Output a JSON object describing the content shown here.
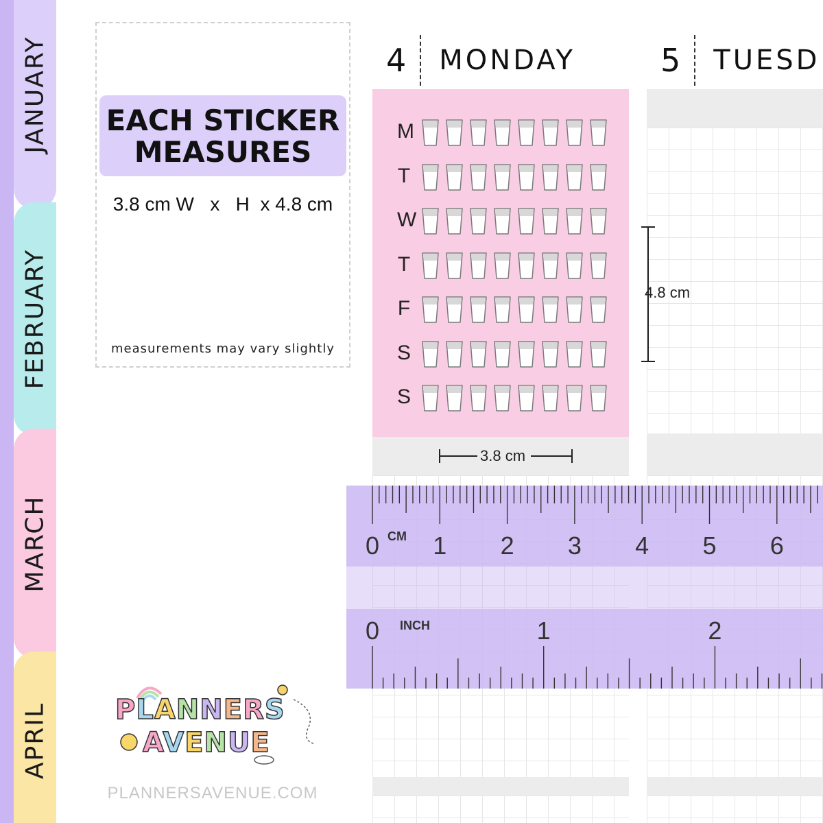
{
  "tabs": [
    {
      "label": "JANUARY",
      "color": "#dcd0fa"
    },
    {
      "label": "FEBRUARY",
      "color": "#b8ecec"
    },
    {
      "label": "MARCH",
      "color": "#fbc9e0"
    },
    {
      "label": "APRIL",
      "color": "#fbe6a6"
    }
  ],
  "info": {
    "title_line1": "EACH STICKER",
    "title_line2": "MEASURES",
    "dimensions": "3.8 cm W   x   H  x 4.8 cm",
    "note": "measurements may vary slightly"
  },
  "days": [
    {
      "number": "4",
      "name": "MONDAY"
    },
    {
      "number": "5",
      "name": "TUESD"
    }
  ],
  "sticker": {
    "rows": [
      "M",
      "T",
      "W",
      "T",
      "F",
      "S",
      "S"
    ],
    "cups_per_row": 8,
    "background": "#f9cde3",
    "watermark": "PLANNERS AVENUE"
  },
  "dimension_labels": {
    "height": "4.8 cm",
    "width": "3.8 cm"
  },
  "ruler": {
    "cm_unit": "CM",
    "cm_numbers": [
      "0",
      "1",
      "2",
      "3",
      "4",
      "5",
      "6"
    ],
    "inch_unit": "INCH",
    "inch_numbers": [
      "0",
      "1",
      "2"
    ],
    "color": "#c9b6f2"
  },
  "logo": {
    "line1": "PLANNERS",
    "line2": "AVENUE"
  },
  "site_url": "PLANNERSAVENUE.COM"
}
